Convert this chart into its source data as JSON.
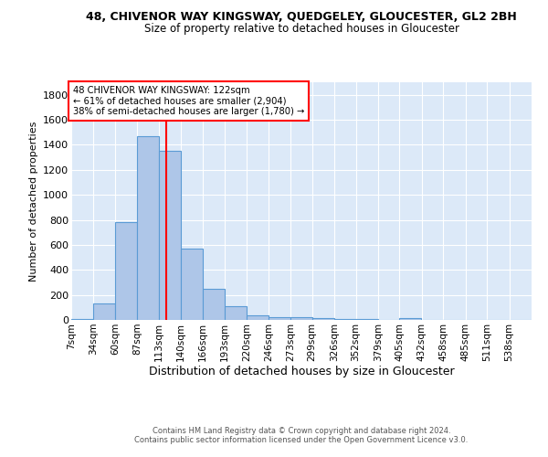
{
  "title_line1": "48, CHIVENOR WAY KINGSWAY, QUEDGELEY, GLOUCESTER, GL2 2BH",
  "title_line2": "Size of property relative to detached houses in Gloucester",
  "xlabel": "Distribution of detached houses by size in Gloucester",
  "ylabel": "Number of detached properties",
  "annotation_line1": "48 CHIVENOR WAY KINGSWAY: 122sqm",
  "annotation_line2": "← 61% of detached houses are smaller (2,904)",
  "annotation_line3": "38% of semi-detached houses are larger (1,780) →",
  "bar_color": "#aec6e8",
  "bar_edge_color": "#5b9bd5",
  "reference_line_x": 122,
  "reference_line_color": "red",
  "categories": [
    "7sqm",
    "34sqm",
    "60sqm",
    "87sqm",
    "113sqm",
    "140sqm",
    "166sqm",
    "193sqm",
    "220sqm",
    "246sqm",
    "273sqm",
    "299sqm",
    "326sqm",
    "352sqm",
    "379sqm",
    "405sqm",
    "432sqm",
    "458sqm",
    "485sqm",
    "511sqm",
    "538sqm"
  ],
  "bin_edges": [
    7,
    34,
    60,
    87,
    113,
    140,
    166,
    193,
    220,
    246,
    273,
    299,
    326,
    352,
    379,
    405,
    432,
    458,
    485,
    511,
    538
  ],
  "bin_width": 27,
  "values": [
    5,
    135,
    780,
    1470,
    1355,
    570,
    245,
    110,
    40,
    25,
    20,
    15,
    10,
    5,
    0,
    15,
    0,
    0,
    0,
    0,
    0
  ],
  "ylim": [
    0,
    1900
  ],
  "yticks": [
    0,
    200,
    400,
    600,
    800,
    1000,
    1200,
    1400,
    1600,
    1800
  ],
  "plot_bg_color": "#dce9f8",
  "grid_color": "#ffffff",
  "footnote1": "Contains HM Land Registry data © Crown copyright and database right 2024.",
  "footnote2": "Contains public sector information licensed under the Open Government Licence v3.0."
}
